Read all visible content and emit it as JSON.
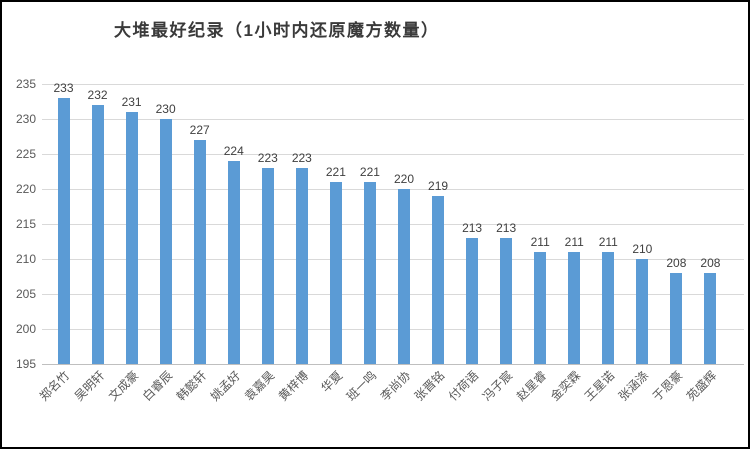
{
  "chart_data": {
    "type": "bar",
    "title": "大堆最好纪录（1小时内还原魔方数量）",
    "categories": [
      "郑名竹",
      "吴明轩",
      "文成豪",
      "白睿辰",
      "韩懿轩",
      "姚孟好",
      "袁嘉昊",
      "黄梓博",
      "华夏",
      "班一鸣",
      "李尚协",
      "张晋铭",
      "付荷语",
      "冯子宸",
      "赵星睿",
      "金奕霖",
      "王星诺",
      "张涵涤",
      "于恩豪",
      "苑盛辉"
    ],
    "values": [
      233,
      232,
      231,
      230,
      227,
      224,
      223,
      223,
      221,
      221,
      220,
      219,
      213,
      213,
      211,
      211,
      211,
      210,
      208,
      208
    ],
    "value_labels_shown": true,
    "xlabel": "",
    "ylabel": "",
    "ylim": [
      195,
      235
    ],
    "yticks": [
      195,
      200,
      205,
      210,
      215,
      220,
      225,
      230,
      235
    ],
    "grid": true,
    "legend": false,
    "colors": {
      "bar": "#5b9bd5",
      "gridline": "#d9d9d9",
      "axis_line": "#bfbfbf",
      "axis_text": "#595959",
      "value_label_text": "#404040",
      "title_text": "#3a3a3a",
      "frame_border": "#000000",
      "background": "#ffffff"
    }
  }
}
